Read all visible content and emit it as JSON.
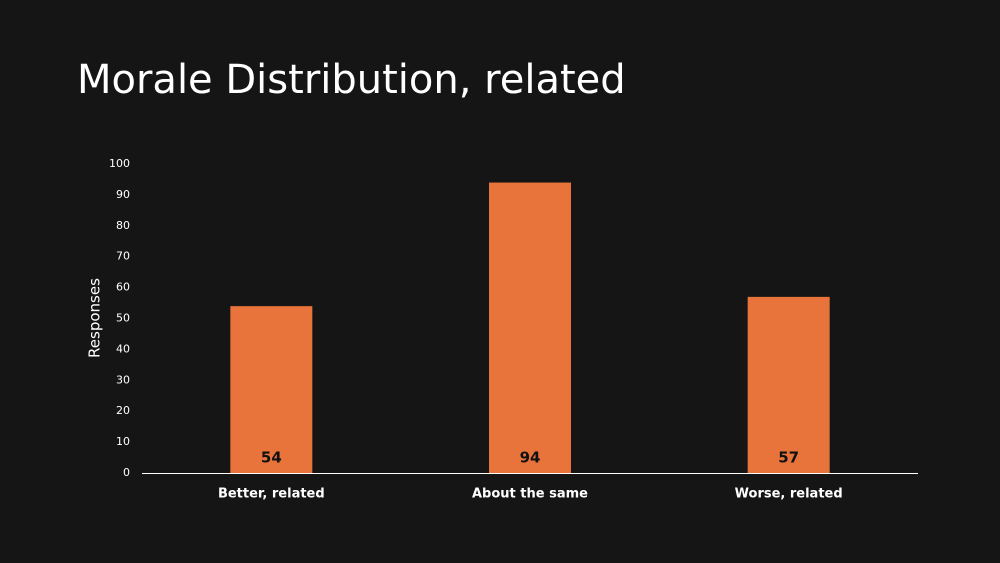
{
  "chart_data": {
    "type": "bar",
    "title": "Morale Distribution, related",
    "y_label": "Responses",
    "categories": [
      "Better, related",
      "About the same",
      "Worse, related"
    ],
    "values": [
      54,
      94,
      57
    ],
    "color": "#e8743b",
    "ylim": [
      0,
      100
    ],
    "yticks": [
      0,
      10,
      20,
      30,
      40,
      50,
      60,
      70,
      80,
      90,
      100
    ],
    "grid": false,
    "data_labels": true
  }
}
